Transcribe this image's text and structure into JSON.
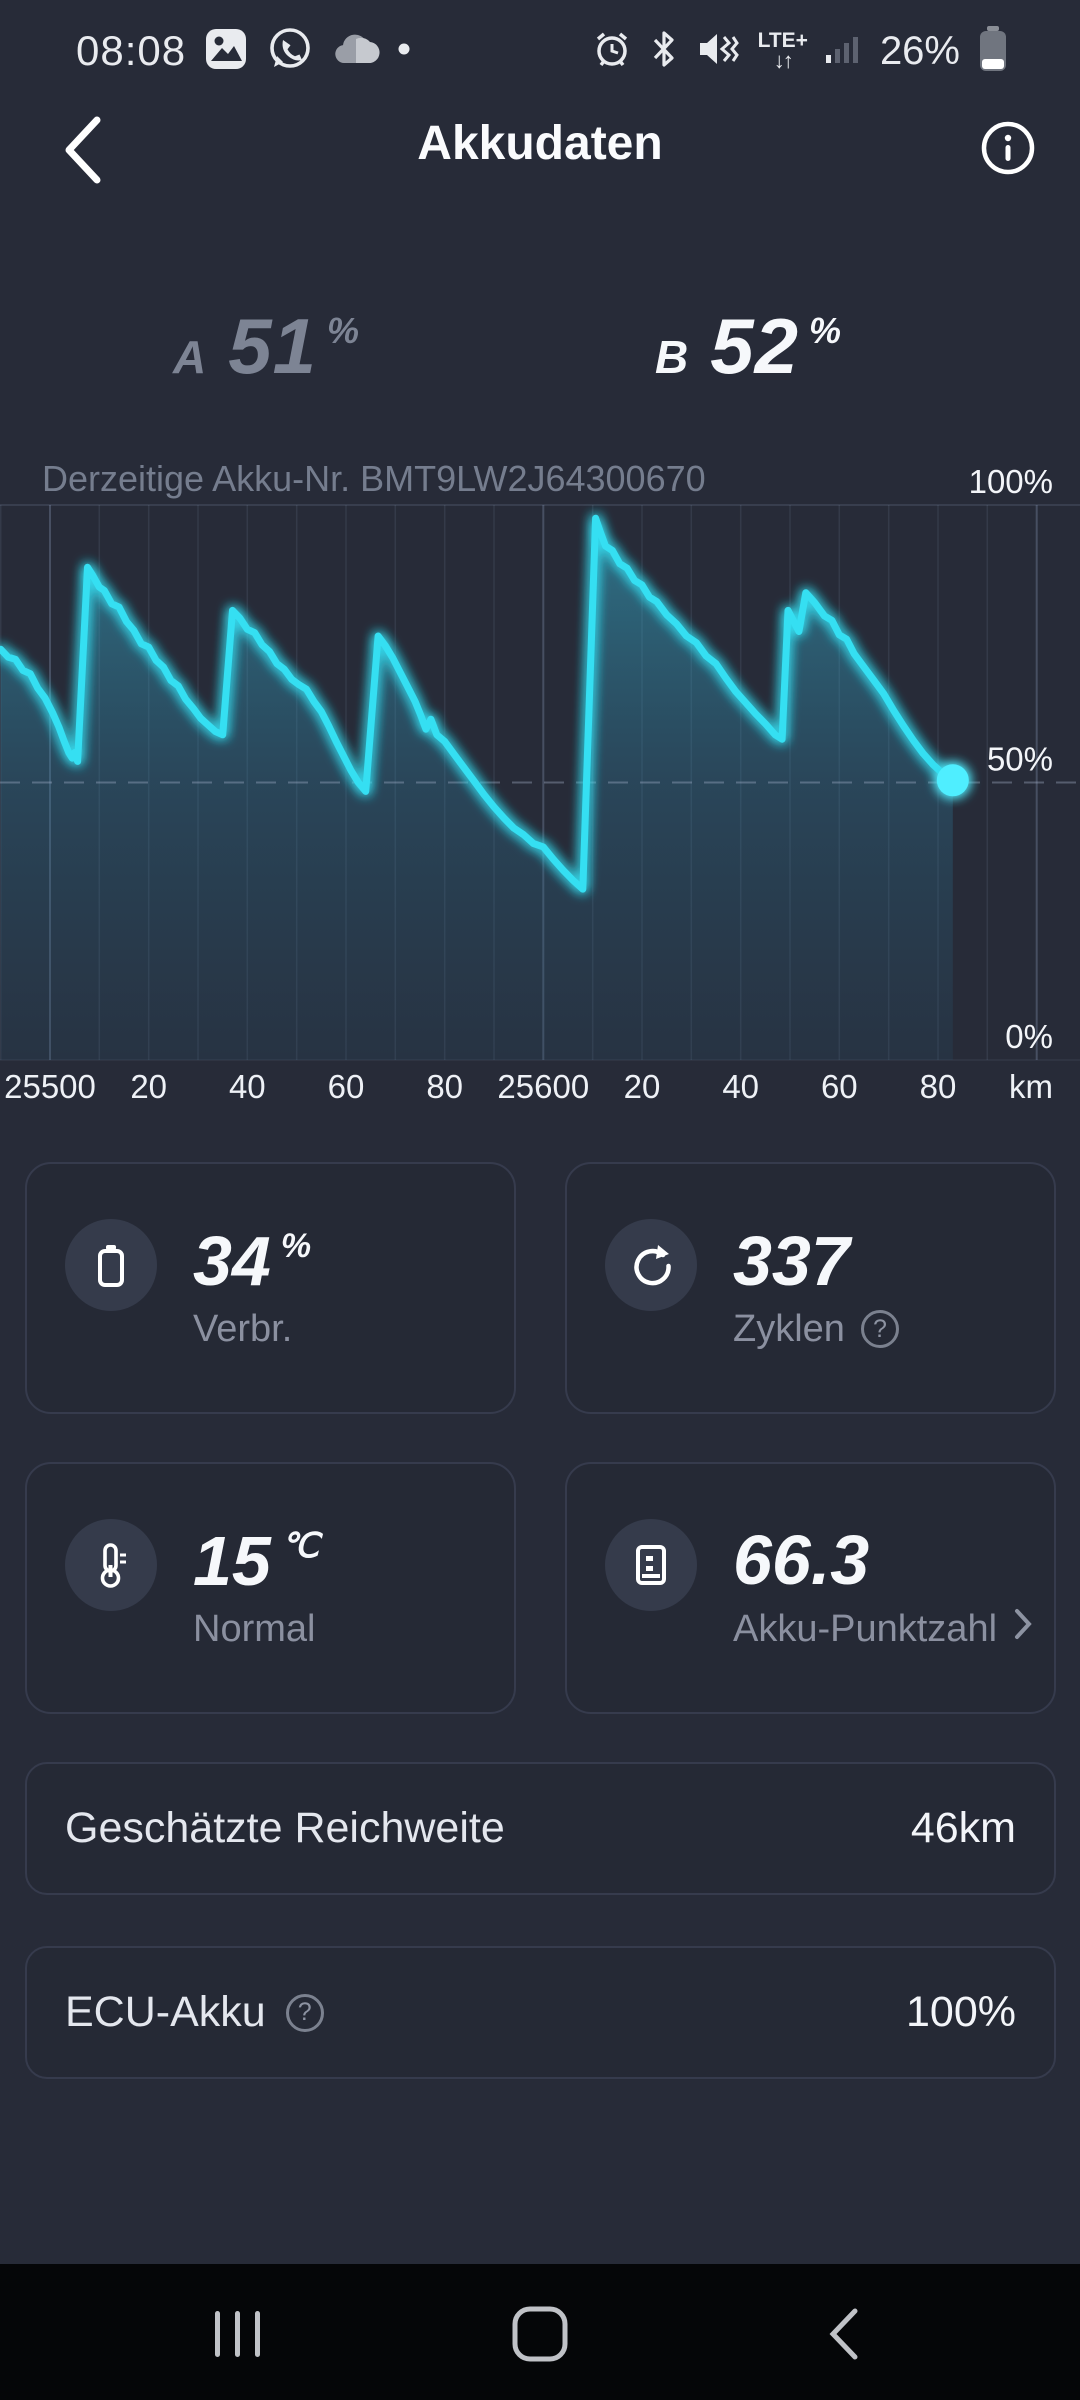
{
  "status_bar": {
    "time": "08:08",
    "network_label": "LTE+",
    "lte_arrows": "↓↑",
    "battery_percent": "26%"
  },
  "header": {
    "title": "Akkudaten"
  },
  "battery_tabs": {
    "a": {
      "label": "A",
      "value": "51",
      "unit": "%"
    },
    "b": {
      "label": "B",
      "value": "52",
      "unit": "%"
    }
  },
  "chart": {
    "caption": "Derzeitige Akku-Nr. BMT9LW2J64300670"
  },
  "chart_data": {
    "type": "area",
    "title": "Battery charge level vs odometer (km)",
    "xlabel": "km",
    "ylabel": "%",
    "xlim": [
      25490,
      25700
    ],
    "ylim": [
      0,
      100
    ],
    "grid_step_km": 10,
    "legend": "none",
    "line_color": "#35dff2",
    "dot_color": "#4feeff",
    "dashed_gridline_at": 50,
    "x_ticks": [
      {
        "km": 25500,
        "label": "25500"
      },
      {
        "km": 25520,
        "label": "20"
      },
      {
        "km": 25540,
        "label": "40"
      },
      {
        "km": 25560,
        "label": "60"
      },
      {
        "km": 25580,
        "label": "80"
      },
      {
        "km": 25600,
        "label": "25600"
      },
      {
        "km": 25620,
        "label": "20"
      },
      {
        "km": 25640,
        "label": "40"
      },
      {
        "km": 25660,
        "label": "60"
      },
      {
        "km": 25680,
        "label": "80"
      }
    ],
    "y_ticks": [
      {
        "value": 100,
        "label": "100%"
      },
      {
        "value": 50,
        "label": "50%"
      },
      {
        "value": 0,
        "label": "0%"
      }
    ],
    "end_marker": {
      "km": 25683,
      "soc": 50.4
    },
    "points": [
      [
        25490,
        74
      ],
      [
        25491.5,
        72.6
      ],
      [
        25493,
        72.2
      ],
      [
        25494.5,
        70.2
      ],
      [
        25496,
        69.6
      ],
      [
        25497.5,
        67
      ],
      [
        25499,
        65.2
      ],
      [
        25500.5,
        62.6
      ],
      [
        25501.8,
        60
      ],
      [
        25502.8,
        57.6
      ],
      [
        25503.8,
        55.4
      ],
      [
        25504.5,
        54.4
      ],
      [
        25505,
        55.4
      ],
      [
        25505.6,
        53.8
      ],
      [
        25507.6,
        88.8
      ],
      [
        25508.6,
        87.4
      ],
      [
        25510,
        85.2
      ],
      [
        25511,
        84.6
      ],
      [
        25512.5,
        82.2
      ],
      [
        25514,
        81.6
      ],
      [
        25515.5,
        79
      ],
      [
        25517,
        77.4
      ],
      [
        25518.5,
        75
      ],
      [
        25520,
        74.4
      ],
      [
        25521.5,
        72
      ],
      [
        25523,
        70.8
      ],
      [
        25524.5,
        68.4
      ],
      [
        25526,
        67.4
      ],
      [
        25527.5,
        65
      ],
      [
        25529,
        63.4
      ],
      [
        25530.5,
        61.6
      ],
      [
        25532,
        60.4
      ],
      [
        25533.5,
        59.2
      ],
      [
        25535,
        58.6
      ],
      [
        25537,
        81
      ],
      [
        25538.5,
        79.6
      ],
      [
        25540,
        77.6
      ],
      [
        25541.5,
        77
      ],
      [
        25543,
        74.8
      ],
      [
        25544.5,
        73.6
      ],
      [
        25546,
        71.4
      ],
      [
        25547.5,
        70.4
      ],
      [
        25549,
        68.6
      ],
      [
        25550.5,
        67.6
      ],
      [
        25552,
        66.8
      ],
      [
        25553.5,
        64.6
      ],
      [
        25555,
        62.8
      ],
      [
        25556.5,
        60.2
      ],
      [
        25558,
        57.4
      ],
      [
        25559.5,
        54.8
      ],
      [
        25561,
        52.2
      ],
      [
        25562.5,
        50
      ],
      [
        25564,
        48.4
      ],
      [
        25566.5,
        76.4
      ],
      [
        25568,
        74.6
      ],
      [
        25569.5,
        72.4
      ],
      [
        25571,
        69.8
      ],
      [
        25572.5,
        67.2
      ],
      [
        25574,
        64.6
      ],
      [
        25575.2,
        62
      ],
      [
        25576.2,
        59.6
      ],
      [
        25577.2,
        61.4
      ],
      [
        25578.4,
        58.6
      ],
      [
        25580,
        57.4
      ],
      [
        25582,
        55
      ],
      [
        25584,
        52.6
      ],
      [
        25586,
        50.2
      ],
      [
        25588,
        47.8
      ],
      [
        25590,
        45.6
      ],
      [
        25592,
        43.6
      ],
      [
        25594,
        41.8
      ],
      [
        25596,
        40.6
      ],
      [
        25598,
        39
      ],
      [
        25600,
        38.4
      ],
      [
        25602,
        36.2
      ],
      [
        25604,
        34.2
      ],
      [
        25606,
        32.4
      ],
      [
        25608,
        30.8
      ],
      [
        25610.6,
        97.6
      ],
      [
        25611.6,
        95
      ],
      [
        25612.6,
        92.6
      ],
      [
        25614,
        91.8
      ],
      [
        25615.5,
        89.4
      ],
      [
        25617,
        88.6
      ],
      [
        25618.5,
        86.4
      ],
      [
        25620,
        85.6
      ],
      [
        25621.5,
        83.4
      ],
      [
        25623,
        82.6
      ],
      [
        25625,
        80.2
      ],
      [
        25627,
        78.6
      ],
      [
        25629,
        76.4
      ],
      [
        25631,
        75.2
      ],
      [
        25633,
        72.8
      ],
      [
        25635,
        71.4
      ],
      [
        25637,
        68.8
      ],
      [
        25639,
        66.4
      ],
      [
        25641,
        64.4
      ],
      [
        25643,
        62.4
      ],
      [
        25645,
        60.6
      ],
      [
        25647,
        58.6
      ],
      [
        25648.4,
        57.8
      ],
      [
        25649.6,
        81
      ],
      [
        25651.8,
        77.2
      ],
      [
        25653.2,
        84.2
      ],
      [
        25655,
        82.4
      ],
      [
        25657,
        80
      ],
      [
        25658.5,
        79.2
      ],
      [
        25660,
        76.6
      ],
      [
        25661.5,
        75.8
      ],
      [
        25663,
        73.2
      ],
      [
        25665,
        70.8
      ],
      [
        25667,
        68.4
      ],
      [
        25669,
        66
      ],
      [
        25671,
        63
      ],
      [
        25673,
        60.2
      ],
      [
        25675,
        57.6
      ],
      [
        25677,
        55.2
      ],
      [
        25679,
        53.2
      ],
      [
        25681,
        51.6
      ],
      [
        25683,
        50.4
      ]
    ]
  },
  "cards": [
    {
      "value": "34",
      "unit": "%",
      "label": "Verbr."
    },
    {
      "value": "337",
      "unit": "",
      "label": "Zyklen"
    },
    {
      "value": "15",
      "unit": "℃",
      "label": "Normal"
    },
    {
      "value": "66.3",
      "unit": "",
      "label": "Akku-Punktzahl"
    }
  ],
  "info_rows": [
    {
      "label": "Geschätzte Reichweite",
      "value": "46km"
    },
    {
      "label": "ECU-Akku",
      "value": "100%"
    }
  ],
  "icons": {
    "help_glyph": "?"
  },
  "colors": {
    "background": "#272b38",
    "card_background": "#252935",
    "accent_line": "#35dff2",
    "end_dot": "#4feeff",
    "muted_text": "#8b90a0",
    "nav_background": "#050608"
  }
}
